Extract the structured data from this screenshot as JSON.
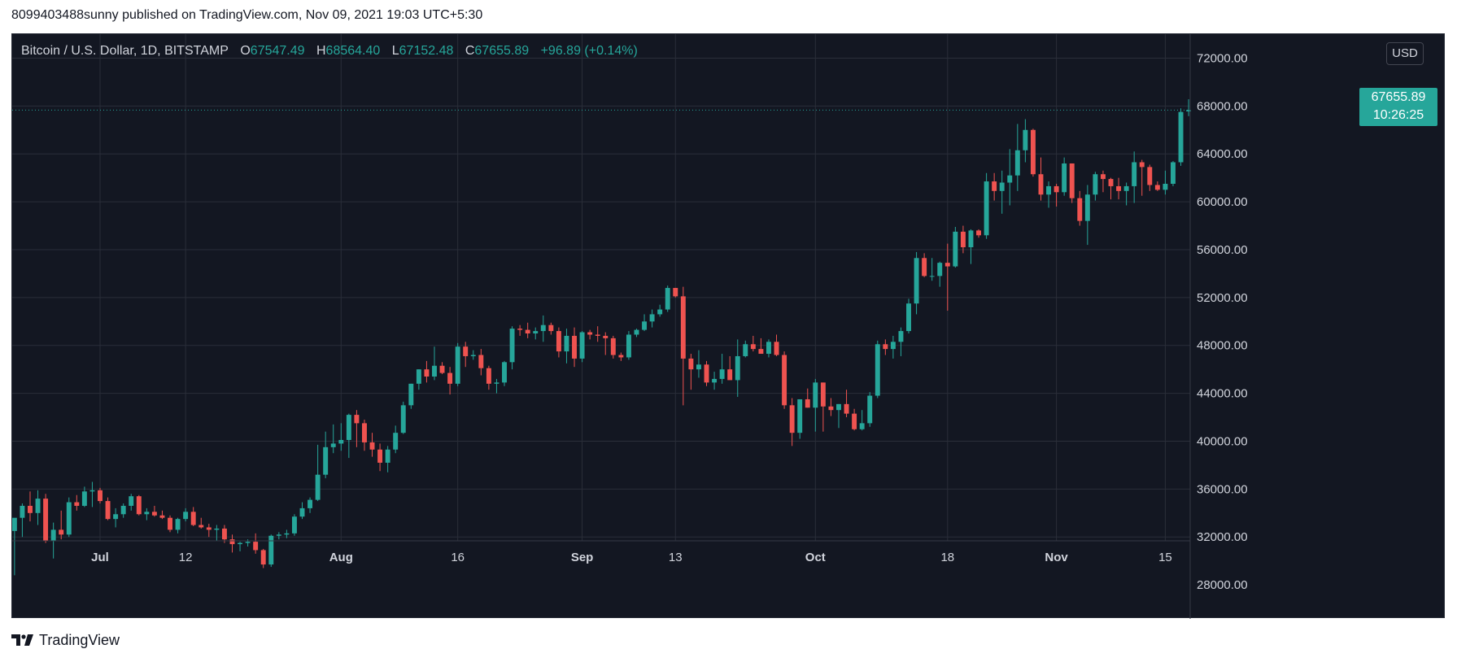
{
  "header": {
    "attribution": "8099403488sunny published on TradingView.com, Nov 09, 2021 19:03 UTC+5:30"
  },
  "legend": {
    "symbol": "Bitcoin / U.S. Dollar, 1D, BITSTAMP",
    "o_label": "O",
    "o_value": "67547.49",
    "h_label": "H",
    "h_value": "68564.40",
    "l_label": "L",
    "l_value": "67152.48",
    "c_label": "C",
    "c_value": "67655.89",
    "change": "+96.89 (+0.14%)"
  },
  "unit_badge": "USD",
  "last_price": {
    "price": "67655.89",
    "countdown": "10:26:25"
  },
  "footer": {
    "brand": "TradingView"
  },
  "colors": {
    "background": "#131722",
    "grid": "#2a2e39",
    "axis_text": "#d1d4dc",
    "up": "#26a69a",
    "down": "#ef5350"
  },
  "chart_data": {
    "type": "candlestick",
    "title": "Bitcoin / U.S. Dollar, 1D, BITSTAMP",
    "grid": true,
    "ylim": [
      24000,
      74000
    ],
    "y_ticks": [
      28000,
      32000,
      36000,
      40000,
      44000,
      48000,
      52000,
      56000,
      60000,
      64000,
      68000,
      72000
    ],
    "y_tick_labels": [
      "28000.00",
      "32000.00",
      "36000.00",
      "40000.00",
      "44000.00",
      "48000.00",
      "52000.00",
      "56000.00",
      "60000.00",
      "64000.00",
      "68000.00",
      "72000.00"
    ],
    "x_ticks": [
      {
        "label": "Jul",
        "index": 11,
        "bold": true
      },
      {
        "label": "12",
        "index": 22,
        "bold": false
      },
      {
        "label": "Aug",
        "index": 42,
        "bold": true
      },
      {
        "label": "16",
        "index": 57,
        "bold": false
      },
      {
        "label": "Sep",
        "index": 73,
        "bold": true
      },
      {
        "label": "13",
        "index": 85,
        "bold": false
      },
      {
        "label": "Oct",
        "index": 103,
        "bold": true
      },
      {
        "label": "18",
        "index": 120,
        "bold": false
      },
      {
        "label": "Nov",
        "index": 134,
        "bold": true
      },
      {
        "label": "15",
        "index": 148,
        "bold": false
      }
    ],
    "x_range": [
      -0.3,
      151.2
    ],
    "dates_start": "2021-06-20",
    "candles": [
      {
        "o": 32500,
        "h": 33400,
        "l": 28800,
        "c": 33600
      },
      {
        "o": 33600,
        "h": 34800,
        "l": 32000,
        "c": 34600
      },
      {
        "o": 34600,
        "h": 35800,
        "l": 33300,
        "c": 34000
      },
      {
        "o": 34000,
        "h": 35900,
        "l": 33000,
        "c": 35200
      },
      {
        "o": 35200,
        "h": 35600,
        "l": 31500,
        "c": 31700
      },
      {
        "o": 31700,
        "h": 33200,
        "l": 30200,
        "c": 32600
      },
      {
        "o": 32600,
        "h": 34200,
        "l": 31800,
        "c": 32200
      },
      {
        "o": 32200,
        "h": 35300,
        "l": 32000,
        "c": 34900
      },
      {
        "o": 34900,
        "h": 35500,
        "l": 34200,
        "c": 34600
      },
      {
        "o": 34600,
        "h": 36200,
        "l": 34500,
        "c": 35800
      },
      {
        "o": 35800,
        "h": 36600,
        "l": 34500,
        "c": 35900
      },
      {
        "o": 35900,
        "h": 36100,
        "l": 34800,
        "c": 35000
      },
      {
        "o": 35000,
        "h": 35300,
        "l": 33400,
        "c": 33500
      },
      {
        "o": 33500,
        "h": 34400,
        "l": 32800,
        "c": 33900
      },
      {
        "o": 33900,
        "h": 34800,
        "l": 33600,
        "c": 34600
      },
      {
        "o": 34600,
        "h": 35600,
        "l": 34200,
        "c": 35400
      },
      {
        "o": 35400,
        "h": 35500,
        "l": 33800,
        "c": 33900
      },
      {
        "o": 33900,
        "h": 34400,
        "l": 33400,
        "c": 34100
      },
      {
        "o": 34100,
        "h": 34600,
        "l": 33700,
        "c": 33800
      },
      {
        "o": 33800,
        "h": 34200,
        "l": 33500,
        "c": 33600
      },
      {
        "o": 33600,
        "h": 33800,
        "l": 32400,
        "c": 32600
      },
      {
        "o": 32600,
        "h": 33600,
        "l": 32300,
        "c": 33500
      },
      {
        "o": 33500,
        "h": 34400,
        "l": 33300,
        "c": 34100
      },
      {
        "o": 34100,
        "h": 34500,
        "l": 32900,
        "c": 33000
      },
      {
        "o": 33000,
        "h": 33600,
        "l": 32700,
        "c": 32800
      },
      {
        "o": 32800,
        "h": 33100,
        "l": 32000,
        "c": 32600
      },
      {
        "o": 32600,
        "h": 33000,
        "l": 31700,
        "c": 32700
      },
      {
        "o": 32700,
        "h": 33000,
        "l": 31500,
        "c": 31800
      },
      {
        "o": 31800,
        "h": 32200,
        "l": 30700,
        "c": 31400
      },
      {
        "o": 31400,
        "h": 31600,
        "l": 30800,
        "c": 31500
      },
      {
        "o": 31500,
        "h": 31800,
        "l": 31200,
        "c": 31600
      },
      {
        "o": 31600,
        "h": 32300,
        "l": 30600,
        "c": 30900
      },
      {
        "o": 30900,
        "h": 31000,
        "l": 29400,
        "c": 29700
      },
      {
        "o": 29700,
        "h": 32200,
        "l": 29500,
        "c": 32100
      },
      {
        "o": 32100,
        "h": 32400,
        "l": 31800,
        "c": 32200
      },
      {
        "o": 32200,
        "h": 32600,
        "l": 31900,
        "c": 32300
      },
      {
        "o": 32300,
        "h": 33900,
        "l": 32100,
        "c": 33700
      },
      {
        "o": 33700,
        "h": 34900,
        "l": 33500,
        "c": 34400
      },
      {
        "o": 34400,
        "h": 35300,
        "l": 34000,
        "c": 35100
      },
      {
        "o": 35100,
        "h": 39700,
        "l": 35000,
        "c": 37200
      },
      {
        "o": 37200,
        "h": 40800,
        "l": 36900,
        "c": 39500
      },
      {
        "o": 39500,
        "h": 41400,
        "l": 39000,
        "c": 39800
      },
      {
        "o": 39800,
        "h": 41500,
        "l": 39200,
        "c": 40100
      },
      {
        "o": 40100,
        "h": 42300,
        "l": 38600,
        "c": 42200
      },
      {
        "o": 42200,
        "h": 42600,
        "l": 39500,
        "c": 41500
      },
      {
        "o": 41500,
        "h": 41800,
        "l": 39200,
        "c": 39900
      },
      {
        "o": 39900,
        "h": 40700,
        "l": 38700,
        "c": 39300
      },
      {
        "o": 39300,
        "h": 39800,
        "l": 37500,
        "c": 38200
      },
      {
        "o": 38200,
        "h": 39600,
        "l": 37400,
        "c": 39300
      },
      {
        "o": 39300,
        "h": 41300,
        "l": 39000,
        "c": 40700
      },
      {
        "o": 40700,
        "h": 43300,
        "l": 40600,
        "c": 43000
      },
      {
        "o": 43000,
        "h": 44800,
        "l": 42700,
        "c": 44800
      },
      {
        "o": 44800,
        "h": 46000,
        "l": 44300,
        "c": 46000
      },
      {
        "o": 46000,
        "h": 46700,
        "l": 44900,
        "c": 45400
      },
      {
        "o": 45400,
        "h": 47900,
        "l": 45100,
        "c": 46300
      },
      {
        "o": 46300,
        "h": 46600,
        "l": 45600,
        "c": 45700
      },
      {
        "o": 45700,
        "h": 46200,
        "l": 43900,
        "c": 44800
      },
      {
        "o": 44800,
        "h": 48200,
        "l": 44600,
        "c": 47900
      },
      {
        "o": 47900,
        "h": 48300,
        "l": 46200,
        "c": 47100
      },
      {
        "o": 47100,
        "h": 47600,
        "l": 46800,
        "c": 47200
      },
      {
        "o": 47200,
        "h": 47700,
        "l": 45500,
        "c": 46100
      },
      {
        "o": 46100,
        "h": 46300,
        "l": 44300,
        "c": 44800
      },
      {
        "o": 44800,
        "h": 45200,
        "l": 44000,
        "c": 44900
      },
      {
        "o": 44900,
        "h": 46700,
        "l": 44600,
        "c": 46600
      },
      {
        "o": 46600,
        "h": 49600,
        "l": 46000,
        "c": 49400
      },
      {
        "o": 49400,
        "h": 49700,
        "l": 48800,
        "c": 49300
      },
      {
        "o": 49300,
        "h": 49900,
        "l": 48600,
        "c": 49000
      },
      {
        "o": 49000,
        "h": 49500,
        "l": 48500,
        "c": 49200
      },
      {
        "o": 49200,
        "h": 50500,
        "l": 48300,
        "c": 49700
      },
      {
        "o": 49700,
        "h": 49900,
        "l": 48900,
        "c": 49200
      },
      {
        "o": 49200,
        "h": 49500,
        "l": 47000,
        "c": 47500
      },
      {
        "o": 47500,
        "h": 49400,
        "l": 46500,
        "c": 48800
      },
      {
        "o": 48800,
        "h": 49500,
        "l": 46200,
        "c": 46900
      },
      {
        "o": 46900,
        "h": 49200,
        "l": 46600,
        "c": 49100
      },
      {
        "o": 49100,
        "h": 49300,
        "l": 48500,
        "c": 48900
      },
      {
        "o": 48900,
        "h": 49600,
        "l": 48300,
        "c": 48800
      },
      {
        "o": 48800,
        "h": 49100,
        "l": 47200,
        "c": 48600
      },
      {
        "o": 48600,
        "h": 48800,
        "l": 46900,
        "c": 47200
      },
      {
        "o": 47200,
        "h": 47400,
        "l": 46700,
        "c": 47000
      },
      {
        "o": 47000,
        "h": 49200,
        "l": 46800,
        "c": 48900
      },
      {
        "o": 48900,
        "h": 49400,
        "l": 48700,
        "c": 49300
      },
      {
        "o": 49300,
        "h": 50600,
        "l": 49200,
        "c": 50000
      },
      {
        "o": 50000,
        "h": 51000,
        "l": 49500,
        "c": 50600
      },
      {
        "o": 50600,
        "h": 51400,
        "l": 50400,
        "c": 51000
      },
      {
        "o": 51000,
        "h": 53000,
        "l": 50800,
        "c": 52800
      },
      {
        "o": 52800,
        "h": 52800,
        "l": 52000,
        "c": 52100
      },
      {
        "o": 52100,
        "h": 52900,
        "l": 43000,
        "c": 46900
      },
      {
        "o": 46900,
        "h": 47300,
        "l": 44300,
        "c": 46000
      },
      {
        "o": 46000,
        "h": 47600,
        "l": 45300,
        "c": 46400
      },
      {
        "o": 46400,
        "h": 46700,
        "l": 44600,
        "c": 44900
      },
      {
        "o": 44900,
        "h": 45800,
        "l": 44300,
        "c": 45200
      },
      {
        "o": 45200,
        "h": 47300,
        "l": 44800,
        "c": 46000
      },
      {
        "o": 46000,
        "h": 47100,
        "l": 45400,
        "c": 45100
      },
      {
        "o": 45100,
        "h": 48500,
        "l": 43700,
        "c": 47100
      },
      {
        "o": 47100,
        "h": 48400,
        "l": 47000,
        "c": 48100
      },
      {
        "o": 48100,
        "h": 48800,
        "l": 47500,
        "c": 47700
      },
      {
        "o": 47700,
        "h": 48600,
        "l": 47400,
        "c": 47300
      },
      {
        "o": 47300,
        "h": 48500,
        "l": 47000,
        "c": 48300
      },
      {
        "o": 48300,
        "h": 48900,
        "l": 47100,
        "c": 47200
      },
      {
        "o": 47200,
        "h": 47500,
        "l": 42700,
        "c": 43000
      },
      {
        "o": 43000,
        "h": 43600,
        "l": 39600,
        "c": 40700
      },
      {
        "o": 40700,
        "h": 43100,
        "l": 40200,
        "c": 43500
      },
      {
        "o": 43500,
        "h": 44400,
        "l": 42800,
        "c": 42800
      },
      {
        "o": 42800,
        "h": 45200,
        "l": 40800,
        "c": 44900
      },
      {
        "o": 44900,
        "h": 44900,
        "l": 40800,
        "c": 42900
      },
      {
        "o": 42900,
        "h": 43600,
        "l": 42100,
        "c": 42600
      },
      {
        "o": 42600,
        "h": 43100,
        "l": 41100,
        "c": 43100
      },
      {
        "o": 43100,
        "h": 44300,
        "l": 42000,
        "c": 42300
      },
      {
        "o": 42300,
        "h": 42700,
        "l": 40900,
        "c": 41000
      },
      {
        "o": 41000,
        "h": 42600,
        "l": 40900,
        "c": 41500
      },
      {
        "o": 41500,
        "h": 44100,
        "l": 41200,
        "c": 43800
      },
      {
        "o": 43800,
        "h": 48400,
        "l": 43600,
        "c": 48100
      },
      {
        "o": 48100,
        "h": 48500,
        "l": 47200,
        "c": 47700
      },
      {
        "o": 47700,
        "h": 48800,
        "l": 46900,
        "c": 48300
      },
      {
        "o": 48300,
        "h": 49500,
        "l": 47100,
        "c": 49200
      },
      {
        "o": 49200,
        "h": 51900,
        "l": 49000,
        "c": 51500
      },
      {
        "o": 51500,
        "h": 55800,
        "l": 50600,
        "c": 55300
      },
      {
        "o": 55300,
        "h": 55700,
        "l": 53700,
        "c": 53800
      },
      {
        "o": 53800,
        "h": 55300,
        "l": 53400,
        "c": 53800
      },
      {
        "o": 53800,
        "h": 55000,
        "l": 52900,
        "c": 54900
      },
      {
        "o": 54900,
        "h": 56500,
        "l": 50900,
        "c": 54600
      },
      {
        "o": 54600,
        "h": 57900,
        "l": 54500,
        "c": 57500
      },
      {
        "o": 57500,
        "h": 58000,
        "l": 55700,
        "c": 56200
      },
      {
        "o": 56200,
        "h": 57700,
        "l": 54800,
        "c": 57600
      },
      {
        "o": 57600,
        "h": 57700,
        "l": 57000,
        "c": 57200
      },
      {
        "o": 57200,
        "h": 62400,
        "l": 56900,
        "c": 61700
      },
      {
        "o": 61700,
        "h": 62400,
        "l": 60100,
        "c": 60900
      },
      {
        "o": 60900,
        "h": 62600,
        "l": 59000,
        "c": 61600
      },
      {
        "o": 61600,
        "h": 64400,
        "l": 59700,
        "c": 62200
      },
      {
        "o": 62200,
        "h": 66500,
        "l": 60900,
        "c": 64300
      },
      {
        "o": 64300,
        "h": 66900,
        "l": 63300,
        "c": 66000
      },
      {
        "o": 66000,
        "h": 66100,
        "l": 62100,
        "c": 62300
      },
      {
        "o": 62300,
        "h": 63700,
        "l": 60100,
        "c": 60600
      },
      {
        "o": 60600,
        "h": 61700,
        "l": 59500,
        "c": 61300
      },
      {
        "o": 61300,
        "h": 61500,
        "l": 59600,
        "c": 60800
      },
      {
        "o": 60800,
        "h": 63700,
        "l": 60500,
        "c": 63200
      },
      {
        "o": 63200,
        "h": 63200,
        "l": 59900,
        "c": 60300
      },
      {
        "o": 60300,
        "h": 60900,
        "l": 58000,
        "c": 58400
      },
      {
        "o": 58400,
        "h": 61400,
        "l": 56400,
        "c": 60600
      },
      {
        "o": 60600,
        "h": 62500,
        "l": 60100,
        "c": 62300
      },
      {
        "o": 62300,
        "h": 62600,
        "l": 60800,
        "c": 61900
      },
      {
        "o": 61900,
        "h": 62000,
        "l": 60200,
        "c": 61300
      },
      {
        "o": 61300,
        "h": 62000,
        "l": 60200,
        "c": 60900
      },
      {
        "o": 60900,
        "h": 61600,
        "l": 59700,
        "c": 61300
      },
      {
        "o": 61300,
        "h": 64200,
        "l": 59900,
        "c": 63300
      },
      {
        "o": 63300,
        "h": 63500,
        "l": 60500,
        "c": 62900
      },
      {
        "o": 62900,
        "h": 63100,
        "l": 60900,
        "c": 61400
      },
      {
        "o": 61400,
        "h": 61700,
        "l": 60900,
        "c": 61000
      },
      {
        "o": 61000,
        "h": 62600,
        "l": 60600,
        "c": 61500
      },
      {
        "o": 61500,
        "h": 63400,
        "l": 61300,
        "c": 63300
      },
      {
        "o": 63300,
        "h": 67800,
        "l": 63000,
        "c": 67500
      },
      {
        "o": 67547.49,
        "h": 68564.4,
        "l": 67152.48,
        "c": 67655.89
      }
    ]
  }
}
